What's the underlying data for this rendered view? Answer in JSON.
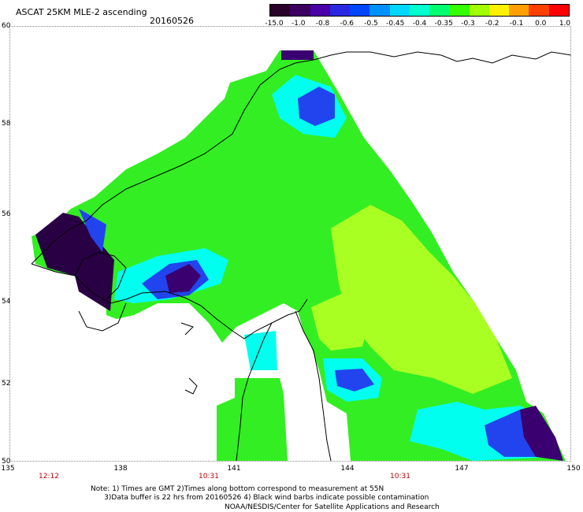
{
  "header": {
    "title": "ASCAT 25KM MLE-2 ascending",
    "date": "20160526"
  },
  "colorbar": {
    "labels": [
      "-15.0",
      "-1.0",
      "-0.8",
      "-0.6",
      "-0.5",
      "-0.45",
      "-0.4",
      "-0.35",
      "-0.3",
      "-0.2",
      "-0.1",
      "0.0",
      "1.0"
    ],
    "colors": [
      "#2a002a",
      "#3b0060",
      "#4a00a8",
      "#2a28e0",
      "#0046ff",
      "#0090ff",
      "#00d8ff",
      "#00ffd0",
      "#00ff70",
      "#33ff00",
      "#a0ff00",
      "#fff000",
      "#ffa000",
      "#ff4000",
      "#ff0000"
    ]
  },
  "axes": {
    "lat_labels": [
      "60",
      "58",
      "56",
      "54",
      "52",
      "50"
    ],
    "lon_labels": [
      "135",
      "138",
      "141",
      "144",
      "147",
      "150"
    ]
  },
  "times": [
    "12:12",
    "10:31",
    "10:31"
  ],
  "notes": {
    "line1": "Note: 1) Times are GMT 2)Times along bottom correspond to measurement at 55N",
    "line2": "3)Data buffer is 22 hrs from 20160526 4) Black wind barbs indicate possible contamination",
    "credit": "NOAA/NESDIS/Center for Satellite Applications and Research"
  },
  "map": {
    "region": "Sea of Okhotsk / Sakhalin",
    "colors": {
      "green": "#33ee22",
      "lime": "#aaff22",
      "cyan": "#00ffee",
      "blue": "#2244ee",
      "purple": "#3a0070",
      "darkpurple": "#2a0045"
    }
  }
}
